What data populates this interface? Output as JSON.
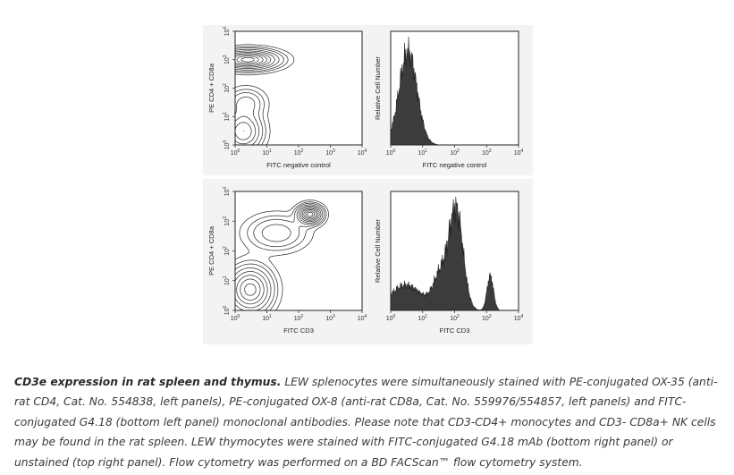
{
  "panels": [
    {
      "id": "top-left",
      "ylabel": "PE CD4 + CD8a",
      "xlabel": "FITC negative control"
    },
    {
      "id": "top-right",
      "ylabel": "Relative Cell Number",
      "xlabel": "FITC negative control"
    },
    {
      "id": "bottom-left",
      "ylabel": "PE CD4 + CD8a",
      "xlabel": "FITC CD3"
    },
    {
      "id": "bottom-right",
      "ylabel": "Relative Cell Number",
      "xlabel": "FITC CD3"
    }
  ],
  "caption": {
    "title": "CD3e expression in rat spleen and thymus.",
    "body": " LEW splenocytes were simultaneously stained with PE-conjugated OX-35 (anti-rat CD4, Cat. No. 554838, left panels), PE-conjugated OX-8 (anti-rat CD8a, Cat. No. 559976/554857, left panels) and FITC-conjugated G4.18 (bottom left panel) monoclonal antibodies. Please note that CD3-CD4+ monocytes and CD3- CD8a+ NK cells may be found in the rat spleen. LEW thymocytes were stained with FITC-conjugated G4.18 mAb (bottom right panel) or unstained (top right panel). Flow cytometry was performed on a BD FACScan™ flow cytometry system."
  },
  "chart_data": [
    {
      "type": "contour",
      "panel": "top-left",
      "xlabel": "FITC negative control",
      "ylabel": "PE CD4 + CD8a",
      "xscale": "log",
      "yscale": "log",
      "xlim": [
        1,
        10000
      ],
      "ylim": [
        1,
        10000
      ],
      "ticks": [
        "10^0",
        "10^1",
        "10^2",
        "10^3",
        "10^4"
      ],
      "populations": [
        {
          "x": 2.5,
          "y": 1000,
          "sx": 0.55,
          "sy": 0.2,
          "weight": 1.0
        },
        {
          "x": 1.8,
          "y": 3,
          "sx": 0.35,
          "sy": 0.4,
          "weight": 0.55
        },
        {
          "x": 2.2,
          "y": 30,
          "sx": 0.35,
          "sy": 0.3,
          "weight": 0.25
        }
      ]
    },
    {
      "type": "histogram",
      "panel": "top-right",
      "xlabel": "FITC negative control",
      "ylabel": "Relative Cell Number",
      "xscale": "log",
      "xlim": [
        1,
        10000
      ],
      "peaks": [
        {
          "x": 3.5,
          "height": 1.0,
          "width": 0.28
        }
      ]
    },
    {
      "type": "contour",
      "panel": "bottom-left",
      "xlabel": "FITC CD3",
      "ylabel": "PE CD4 + CD8a",
      "xscale": "log",
      "yscale": "log",
      "xlim": [
        1,
        10000
      ],
      "ylim": [
        1,
        10000
      ],
      "ticks": [
        "10^0",
        "10^1",
        "10^2",
        "10^3",
        "10^4"
      ],
      "populations": [
        {
          "x": 230,
          "y": 1700,
          "sx": 0.22,
          "sy": 0.18,
          "weight": 1.0
        },
        {
          "x": 3,
          "y": 5,
          "sx": 0.4,
          "sy": 0.45,
          "weight": 0.75
        },
        {
          "x": 20,
          "y": 400,
          "sx": 0.55,
          "sy": 0.35,
          "weight": 0.28
        }
      ]
    },
    {
      "type": "histogram",
      "panel": "bottom-right",
      "xlabel": "FITC CD3",
      "ylabel": "Relative Cell Number",
      "xscale": "log",
      "xlim": [
        1,
        10000
      ],
      "peaks": [
        {
          "x": 3,
          "height": 0.25,
          "width": 0.5
        },
        {
          "x": 35,
          "height": 0.32,
          "width": 0.22
        },
        {
          "x": 110,
          "height": 1.0,
          "width": 0.22
        },
        {
          "x": 1300,
          "height": 0.34,
          "width": 0.1
        }
      ]
    }
  ]
}
